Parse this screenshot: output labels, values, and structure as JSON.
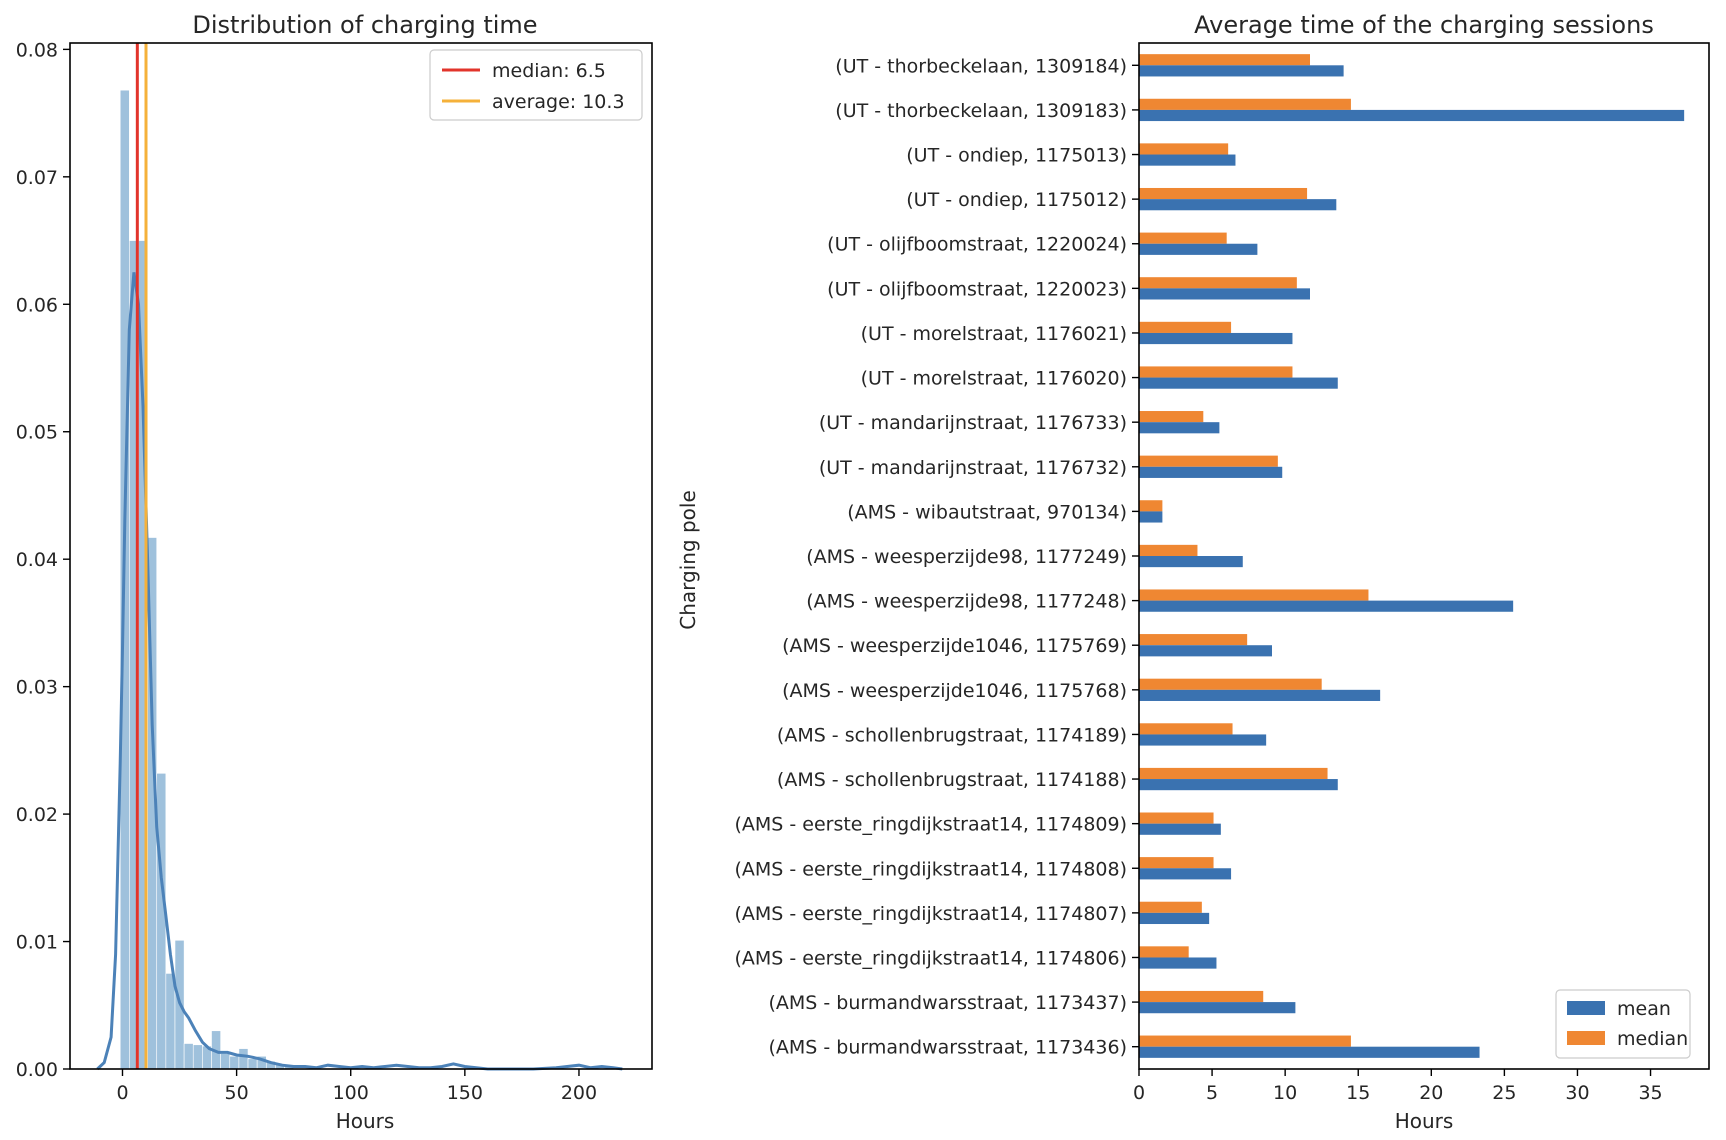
{
  "chart_data": [
    {
      "type": "histogram",
      "title": "Distribution of charging time",
      "xlabel": "Hours",
      "ylabel": "",
      "xlim": [
        -23,
        232
      ],
      "ylim": [
        0,
        0.0805
      ],
      "xticks": [
        0,
        50,
        100,
        150,
        200
      ],
      "yticks": [
        0.0,
        0.01,
        0.02,
        0.03,
        0.04,
        0.05,
        0.06,
        0.07,
        0.08
      ],
      "ytick_labels": [
        "0.00",
        "0.01",
        "0.02",
        "0.03",
        "0.04",
        "0.05",
        "0.06",
        "0.07",
        "0.08"
      ],
      "grid": false,
      "legend_position": "top-right",
      "bar_color": "#9fc1dc",
      "kde_color": "#4c82b8",
      "bins": [
        {
          "x0": -1,
          "x1": 3,
          "density": 0.0768
        },
        {
          "x0": 3,
          "x1": 7,
          "density": 0.065
        },
        {
          "x0": 7,
          "x1": 11,
          "density": 0.065
        },
        {
          "x0": 11,
          "x1": 15,
          "density": 0.0417
        },
        {
          "x0": 15,
          "x1": 19,
          "density": 0.0232
        },
        {
          "x0": 19,
          "x1": 23,
          "density": 0.0075
        },
        {
          "x0": 23,
          "x1": 27,
          "density": 0.0101
        },
        {
          "x0": 27,
          "x1": 31,
          "density": 0.002
        },
        {
          "x0": 31,
          "x1": 35,
          "density": 0.0019
        },
        {
          "x0": 35,
          "x1": 39,
          "density": 0.0018
        },
        {
          "x0": 39,
          "x1": 43,
          "density": 0.003
        },
        {
          "x0": 43,
          "x1": 47,
          "density": 0.0012
        },
        {
          "x0": 47,
          "x1": 51,
          "density": 0.001
        },
        {
          "x0": 51,
          "x1": 55,
          "density": 0.0016
        },
        {
          "x0": 55,
          "x1": 59,
          "density": 0.0008
        },
        {
          "x0": 59,
          "x1": 63,
          "density": 0.001
        },
        {
          "x0": 63,
          "x1": 67,
          "density": 0.0006
        },
        {
          "x0": 67,
          "x1": 71,
          "density": 0.0004
        },
        {
          "x0": 71,
          "x1": 75,
          "density": 0.0003
        }
      ],
      "kde": {
        "x": [
          -11,
          -8,
          -5,
          -3,
          -1,
          0,
          1,
          3,
          5,
          7,
          9,
          11,
          13,
          15,
          17,
          19,
          21,
          23,
          25,
          27,
          29,
          32,
          35,
          38,
          42,
          46,
          50,
          55,
          60,
          65,
          70,
          75,
          80,
          85,
          90,
          95,
          100,
          105,
          110,
          115,
          120,
          125,
          130,
          135,
          140,
          145,
          150,
          155,
          160,
          170,
          180,
          190,
          200,
          205,
          210,
          215,
          219
        ],
        "y": [
          0.0,
          0.0005,
          0.0025,
          0.009,
          0.024,
          0.033,
          0.043,
          0.058,
          0.0625,
          0.06,
          0.052,
          0.04,
          0.027,
          0.019,
          0.015,
          0.012,
          0.009,
          0.0065,
          0.0052,
          0.0045,
          0.004,
          0.003,
          0.0021,
          0.0016,
          0.0013,
          0.0013,
          0.0011,
          0.001,
          0.0008,
          0.0005,
          0.0003,
          0.0002,
          0.0002,
          0.0001,
          0.0003,
          0.0002,
          0.0001,
          0.0002,
          0.0001,
          0.0002,
          0.0003,
          0.0002,
          0.0001,
          0.0001,
          0.0002,
          0.0004,
          0.0002,
          0.0001,
          0.0,
          0.0,
          0.0,
          0.0001,
          0.0003,
          0.0001,
          0.0002,
          0.0001,
          0.0
        ]
      },
      "vlines": [
        {
          "label": "median: 6.5",
          "value": 6.5,
          "color": "#e2342b"
        },
        {
          "label": "average: 10.3",
          "value": 10.3,
          "color": "#f5b13a"
        }
      ]
    },
    {
      "type": "bar",
      "orientation": "horizontal",
      "title": "Average time of the charging sessions",
      "xlabel": "Hours",
      "ylabel": "Charging pole",
      "xlim": [
        0,
        39
      ],
      "xticks": [
        0,
        5,
        10,
        15,
        20,
        25,
        30,
        35
      ],
      "grid": false,
      "legend_position": "bottom-right",
      "categories": [
        "(UT - thorbeckelaan, 1309184)",
        "(UT - thorbeckelaan, 1309183)",
        "(UT - ondiep, 1175013)",
        "(UT - ondiep, 1175012)",
        "(UT - olijfboomstraat, 1220024)",
        "(UT - olijfboomstraat, 1220023)",
        "(UT - morelstraat, 1176021)",
        "(UT - morelstraat, 1176020)",
        "(UT - mandarijnstraat, 1176733)",
        "(UT - mandarijnstraat, 1176732)",
        "(AMS - wibautstraat, 970134)",
        "(AMS - weesperzijde98, 1177249)",
        "(AMS - weesperzijde98, 1177248)",
        "(AMS - weesperzijde1046, 1175769)",
        "(AMS - weesperzijde1046, 1175768)",
        "(AMS - schollenbrugstraat, 1174189)",
        "(AMS - schollenbrugstraat, 1174188)",
        "(AMS - eerste_ringdijkstraat14, 1174809)",
        "(AMS - eerste_ringdijkstraat14, 1174808)",
        "(AMS - eerste_ringdijkstraat14, 1174807)",
        "(AMS - eerste_ringdijkstraat14, 1174806)",
        "(AMS - burmandwarsstraat, 1173437)",
        "(AMS - burmandwarsstraat, 1173436)"
      ],
      "series": [
        {
          "name": "mean",
          "color": "#3a72b0",
          "values": [
            14.0,
            37.3,
            6.6,
            13.5,
            8.1,
            11.7,
            10.5,
            13.6,
            5.5,
            9.8,
            1.6,
            7.1,
            25.6,
            9.1,
            16.5,
            8.7,
            13.6,
            5.6,
            6.3,
            4.8,
            5.3,
            10.7,
            23.3
          ]
        },
        {
          "name": "median",
          "color": "#ef8732",
          "values": [
            11.7,
            14.5,
            6.1,
            11.5,
            6.0,
            10.8,
            6.3,
            10.5,
            4.4,
            9.5,
            1.6,
            4.0,
            15.7,
            7.4,
            12.5,
            6.4,
            12.9,
            5.1,
            5.1,
            4.3,
            3.4,
            8.5,
            14.5
          ]
        }
      ]
    }
  ]
}
